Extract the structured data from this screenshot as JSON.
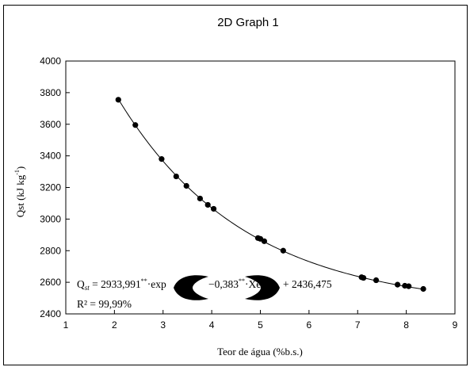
{
  "chart_data": {
    "type": "scatter",
    "title": "2D Graph 1",
    "xlabel": "Teor de água (%b.s.)",
    "ylabel": "Qst (kJ kg",
    "ylabel_exp": "-1",
    "ylabel_close": ")",
    "xlim": [
      1,
      9
    ],
    "ylim": [
      2400,
      4000
    ],
    "x_ticks": [
      1,
      2,
      3,
      4,
      5,
      6,
      7,
      8,
      9
    ],
    "y_ticks": [
      2400,
      2600,
      2800,
      3000,
      3200,
      3400,
      3600,
      3800,
      4000
    ],
    "grid": false,
    "series": [
      {
        "type": "scatter",
        "points": [
          {
            "x": 2.08,
            "y": 3755
          },
          {
            "x": 2.43,
            "y": 3595
          },
          {
            "x": 2.97,
            "y": 3380
          },
          {
            "x": 3.27,
            "y": 3270
          },
          {
            "x": 3.48,
            "y": 3210
          },
          {
            "x": 3.76,
            "y": 3130
          },
          {
            "x": 3.92,
            "y": 3090
          },
          {
            "x": 4.04,
            "y": 3065
          },
          {
            "x": 4.95,
            "y": 2880
          },
          {
            "x": 5.0,
            "y": 2875
          },
          {
            "x": 5.08,
            "y": 2860
          },
          {
            "x": 5.47,
            "y": 2800
          },
          {
            "x": 7.08,
            "y": 2632
          },
          {
            "x": 7.12,
            "y": 2628
          },
          {
            "x": 7.38,
            "y": 2613
          },
          {
            "x": 7.82,
            "y": 2585
          },
          {
            "x": 7.97,
            "y": 2578
          },
          {
            "x": 8.05,
            "y": 2575
          },
          {
            "x": 8.35,
            "y": 2558
          }
        ]
      },
      {
        "type": "line",
        "model": {
          "a": 2933.991,
          "b": -0.383,
          "c": 2436.475
        },
        "x_range": [
          2.08,
          8.35
        ]
      }
    ],
    "annotations": {
      "eq_q": "Q",
      "eq_sub": "st",
      "eq_part1": " = 2933,991",
      "eq_sup1": "**",
      "eq_part2": "·exp",
      "eq_part3": "−0,383",
      "eq_sup2": "**",
      "eq_part4": "·Xe",
      "eq_part5": "+ 2436,475",
      "r2": "R² = 99,99%"
    }
  }
}
